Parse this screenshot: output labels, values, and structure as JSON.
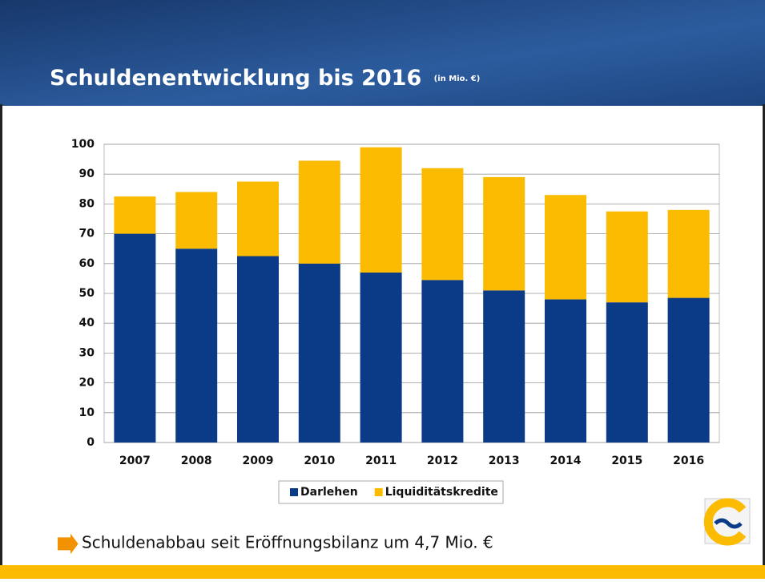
{
  "slide": {
    "title": "Schuldenentwicklung bis 2016",
    "title_note": "(in Mio. €)",
    "bullet": "Schuldenabbau seit Eröffnungsbilanz um 4,7 Mio. €"
  },
  "chart_data": {
    "type": "stacked_bar",
    "categories": [
      "2007",
      "2008",
      "2009",
      "2010",
      "2011",
      "2012",
      "2013",
      "2014",
      "2015",
      "2016"
    ],
    "series": [
      {
        "name": "Darlehen",
        "color": "#0b3a86",
        "values": [
          70,
          65,
          62.5,
          60,
          57,
          54.5,
          51,
          48,
          47,
          48.5
        ]
      },
      {
        "name": "Liquiditätskredite",
        "color": "#fbbb00",
        "values": [
          12.5,
          19,
          25,
          34.5,
          42,
          37.5,
          38,
          35,
          30.5,
          29.5
        ]
      }
    ],
    "ylim": [
      0,
      100
    ],
    "yticks": [
      0,
      10,
      20,
      30,
      40,
      50,
      60,
      70,
      80,
      90,
      100
    ],
    "grid": true,
    "legend": "bottom"
  }
}
